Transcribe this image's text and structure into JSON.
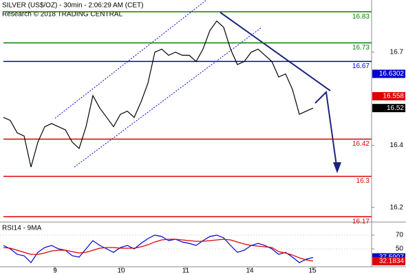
{
  "chart_data": [
    {
      "type": "line",
      "title": "SILVER (US$/OZ) - 30min - 2:06:29 AM (CET)",
      "subtitle": "Research © 2018 TRADING CENTRAL",
      "x": [
        0,
        1,
        2,
        3,
        4,
        5,
        6,
        7,
        8,
        9,
        10,
        11,
        12,
        13,
        14,
        15,
        16,
        17,
        18,
        19,
        20,
        21,
        22,
        23,
        24,
        25,
        26,
        27,
        28,
        29,
        30,
        31,
        32,
        33,
        34,
        35,
        36,
        37,
        38,
        39,
        40,
        41,
        42,
        43,
        44,
        45
      ],
      "xlim": [
        -0.5,
        53.5
      ],
      "xticks": [
        {
          "value": 7.5,
          "label": "9"
        },
        {
          "value": 17.1,
          "label": "10"
        },
        {
          "value": 26.5,
          "label": "11"
        },
        {
          "value": 35.8,
          "label": "14"
        },
        {
          "value": 44.9,
          "label": "15"
        }
      ],
      "series": [
        {
          "color": "#000000",
          "values": [
            16.49,
            16.48,
            16.44,
            16.43,
            16.33,
            16.41,
            16.46,
            16.47,
            16.46,
            16.45,
            16.41,
            16.39,
            16.46,
            16.56,
            16.52,
            16.49,
            16.46,
            16.5,
            16.51,
            16.49,
            16.54,
            16.6,
            16.7,
            16.71,
            16.69,
            16.7,
            16.69,
            16.69,
            16.67,
            16.71,
            16.77,
            16.8,
            16.78,
            16.71,
            16.66,
            16.67,
            16.7,
            16.71,
            16.69,
            16.67,
            16.62,
            16.63,
            16.58,
            16.5,
            16.51,
            16.52
          ]
        }
      ],
      "ylim": [
        16.155,
        16.868
      ],
      "yticks": [
        16.2,
        16.4,
        16.7
      ],
      "levels": [
        {
          "value": 16.83,
          "color": "#008000"
        },
        {
          "value": 16.73,
          "color": "#008000"
        },
        {
          "value": 16.67,
          "color": "#0000cc"
        },
        {
          "value": 16.42,
          "color": "#dd0000"
        },
        {
          "value": 16.3,
          "color": "#dd0000"
        },
        {
          "value": 16.17,
          "color": "#dd0000"
        }
      ],
      "value_boxes": [
        {
          "value": 16.6302,
          "color": "#0000cc"
        },
        {
          "value": 16.558,
          "color": "#dd0000"
        },
        {
          "value": 16.52,
          "color": "#000000"
        }
      ]
    },
    {
      "type": "line",
      "title": "RSI14 - 9MA",
      "x": [
        0,
        1,
        2,
        3,
        4,
        5,
        6,
        7,
        8,
        9,
        10,
        11,
        12,
        13,
        14,
        15,
        16,
        17,
        18,
        19,
        20,
        21,
        22,
        23,
        24,
        25,
        26,
        27,
        28,
        29,
        30,
        31,
        32,
        33,
        34,
        35,
        36,
        37,
        38,
        39,
        40,
        41,
        42,
        43,
        44,
        45
      ],
      "series": [
        {
          "color": "#0000cc",
          "values": [
            55,
            50,
            42,
            40,
            30,
            45,
            52,
            55,
            50,
            48,
            40,
            38,
            50,
            62,
            55,
            50,
            45,
            52,
            55,
            50,
            58,
            65,
            70,
            68,
            62,
            64,
            60,
            58,
            55,
            62,
            68,
            70,
            66,
            55,
            45,
            48,
            55,
            58,
            55,
            50,
            42,
            45,
            38,
            30,
            35,
            37.5907
          ]
        },
        {
          "color": "#dd0000",
          "values": [
            52,
            51,
            48,
            45,
            42,
            42,
            44,
            47,
            48,
            48,
            46,
            44,
            45,
            48,
            51,
            52,
            52,
            51,
            51,
            51,
            53,
            56,
            60,
            63,
            64,
            64,
            63,
            62,
            61,
            61,
            62,
            63,
            64,
            63,
            60,
            57,
            55,
            54,
            53,
            52,
            46,
            44,
            41,
            37,
            34,
            32.1834
          ]
        }
      ],
      "ylim": [
        24,
        87
      ],
      "yticks": [
        50,
        70
      ],
      "value_boxes": [
        {
          "value": 37.5907,
          "color": "#0000cc"
        },
        {
          "value": 32.1834,
          "color": "#dd0000"
        }
      ]
    }
  ]
}
